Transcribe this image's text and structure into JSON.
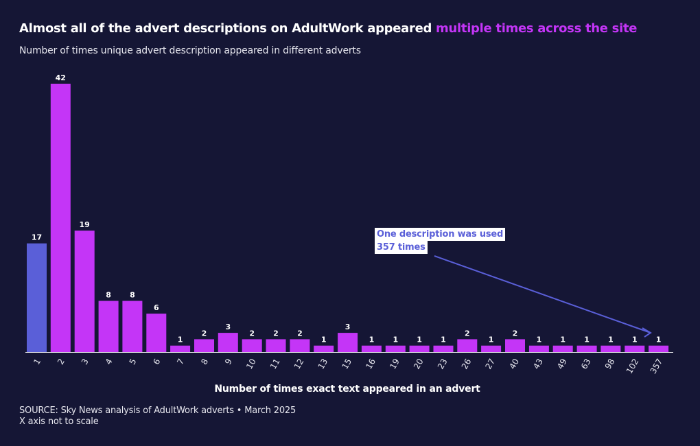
{
  "header": {
    "title_plain": "Almost all of the advert descriptions on AdultWork appeared ",
    "title_highlight": "multiple times across the site",
    "subtitle": "Number of times unique advert description appeared in different adverts"
  },
  "annotation": {
    "line1": "One description was used",
    "line2": "357 times"
  },
  "footer": {
    "source": "SOURCE: Sky News analysis of AdultWork adverts • March 2025",
    "note": "X axis not to scale"
  },
  "colors": {
    "background": "#151635",
    "bar_primary": "#c435f7",
    "bar_first": "#5a5fd8",
    "annotation": "#5a5fd8"
  },
  "chart_data": {
    "type": "bar",
    "title": "Almost all of the advert descriptions on AdultWork appeared multiple times across the site",
    "xlabel": "Number of times exact text appeared in an advert",
    "ylabel": "",
    "categories": [
      "1",
      "2",
      "3",
      "4",
      "5",
      "6",
      "7",
      "8",
      "9",
      "10",
      "11",
      "12",
      "13",
      "15",
      "16",
      "19",
      "20",
      "23",
      "26",
      "27",
      "40",
      "43",
      "49",
      "63",
      "98",
      "102",
      "357"
    ],
    "values": [
      17,
      42,
      19,
      8,
      8,
      6,
      1,
      2,
      3,
      2,
      2,
      2,
      1,
      3,
      1,
      1,
      1,
      1,
      2,
      1,
      2,
      1,
      1,
      1,
      1,
      1,
      1
    ],
    "ylim": [
      0,
      42
    ],
    "grid": false,
    "legend": "none",
    "data_labels": true
  }
}
